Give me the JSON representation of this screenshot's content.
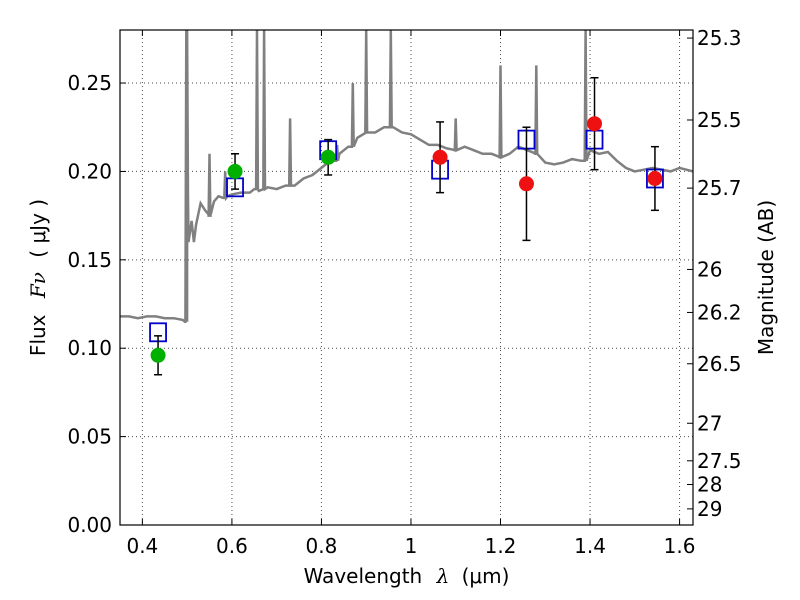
{
  "chart_data": {
    "type": "scatter",
    "xlabel": "Wavelength",
    "xlabel_symbol": "λ",
    "xlabel_unit": "(μm)",
    "ylabel": "Flux",
    "ylabel_symbol": "Fν",
    "ylabel_unit": "( μJy )",
    "y2label": "Magnitude (AB)",
    "xlim": [
      0.35,
      1.63
    ],
    "ylim": [
      0.0,
      0.28
    ],
    "grid": true,
    "x_ticks": [
      {
        "value": 0.4,
        "label": "0.4"
      },
      {
        "value": 0.6,
        "label": "0.6"
      },
      {
        "value": 0.8,
        "label": "0.8"
      },
      {
        "value": 1.0,
        "label": "1"
      },
      {
        "value": 1.2,
        "label": "1.2"
      },
      {
        "value": 1.4,
        "label": "1.4"
      },
      {
        "value": 1.6,
        "label": "1.6"
      }
    ],
    "y_ticks": [
      {
        "value": 0.0,
        "label": "0.00"
      },
      {
        "value": 0.05,
        "label": "0.05"
      },
      {
        "value": 0.1,
        "label": "0.10"
      },
      {
        "value": 0.15,
        "label": "0.15"
      },
      {
        "value": 0.2,
        "label": "0.20"
      },
      {
        "value": 0.25,
        "label": "0.25"
      }
    ],
    "mag_ticks": [
      {
        "value": 25.3,
        "label": "25.3"
      },
      {
        "value": 25.5,
        "label": "25.5"
      },
      {
        "value": 25.7,
        "label": "25.7"
      },
      {
        "value": 26.0,
        "label": "26"
      },
      {
        "value": 26.2,
        "label": "26.2"
      },
      {
        "value": 26.5,
        "label": "26.5"
      },
      {
        "value": 27.0,
        "label": "27"
      },
      {
        "value": 27.5,
        "label": "27.5"
      },
      {
        "value": 28.0,
        "label": "28"
      },
      {
        "value": 29.0,
        "label": "29"
      }
    ],
    "colors": {
      "spectrum": "#808080",
      "model": "#0000cc",
      "optical": "#00b000",
      "nir": "#ee1111",
      "errorbar": "#000000"
    },
    "spectrum": {
      "x": [
        0.35,
        0.37,
        0.39,
        0.41,
        0.43,
        0.45,
        0.47,
        0.49,
        0.495,
        0.5,
        0.503,
        0.51,
        0.515,
        0.52,
        0.53,
        0.54,
        0.55,
        0.56,
        0.57,
        0.58,
        0.59,
        0.6,
        0.62,
        0.64,
        0.65,
        0.66,
        0.67,
        0.68,
        0.7,
        0.72,
        0.74,
        0.76,
        0.78,
        0.8,
        0.82,
        0.84,
        0.86,
        0.88,
        0.9,
        0.92,
        0.94,
        0.96,
        0.98,
        1.0,
        1.02,
        1.04,
        1.06,
        1.08,
        1.1,
        1.12,
        1.14,
        1.16,
        1.18,
        1.2,
        1.22,
        1.24,
        1.26,
        1.28,
        1.3,
        1.32,
        1.34,
        1.36,
        1.38,
        1.4,
        1.42,
        1.44,
        1.46,
        1.48,
        1.5,
        1.52,
        1.54,
        1.56,
        1.58,
        1.6,
        1.63
      ],
      "y": [
        0.118,
        0.118,
        0.117,
        0.118,
        0.118,
        0.117,
        0.117,
        0.116,
        0.115,
        0.185,
        0.16,
        0.172,
        0.16,
        0.17,
        0.182,
        0.178,
        0.175,
        0.183,
        0.186,
        0.185,
        0.186,
        0.187,
        0.188,
        0.188,
        0.19,
        0.189,
        0.19,
        0.191,
        0.19,
        0.192,
        0.192,
        0.196,
        0.198,
        0.202,
        0.206,
        0.21,
        0.214,
        0.219,
        0.222,
        0.222,
        0.225,
        0.225,
        0.222,
        0.221,
        0.218,
        0.215,
        0.215,
        0.213,
        0.212,
        0.214,
        0.212,
        0.21,
        0.21,
        0.208,
        0.21,
        0.214,
        0.212,
        0.21,
        0.205,
        0.204,
        0.205,
        0.207,
        0.206,
        0.212,
        0.21,
        0.211,
        0.206,
        0.202,
        0.2,
        0.201,
        0.202,
        0.201,
        0.2,
        0.202,
        0.2
      ]
    },
    "spectrum_spikes": [
      {
        "x": 0.498,
        "y": 0.28
      },
      {
        "x": 0.5,
        "y": 0.28
      },
      {
        "x": 0.55,
        "y": 0.21
      },
      {
        "x": 0.585,
        "y": 0.2
      },
      {
        "x": 0.656,
        "y": 0.28
      },
      {
        "x": 0.672,
        "y": 0.28
      },
      {
        "x": 0.73,
        "y": 0.23
      },
      {
        "x": 0.835,
        "y": 0.215
      },
      {
        "x": 0.87,
        "y": 0.25
      },
      {
        "x": 0.9,
        "y": 0.28
      },
      {
        "x": 0.955,
        "y": 0.28
      },
      {
        "x": 1.1,
        "y": 0.23
      },
      {
        "x": 1.2,
        "y": 0.26
      },
      {
        "x": 1.28,
        "y": 0.26
      },
      {
        "x": 1.39,
        "y": 0.28
      }
    ],
    "model_points": {
      "x": [
        0.435,
        0.607,
        0.815,
        1.065,
        1.258,
        1.41,
        1.545
      ],
      "y": [
        0.109,
        0.191,
        0.212,
        0.201,
        0.218,
        0.218,
        0.196
      ]
    },
    "optical_points": {
      "x": [
        0.435,
        0.607,
        0.815
      ],
      "y": [
        0.096,
        0.2,
        0.208
      ],
      "err": [
        0.011,
        0.01,
        0.01
      ]
    },
    "nir_points": {
      "x": [
        1.065,
        1.258,
        1.41,
        1.545
      ],
      "y": [
        0.208,
        0.193,
        0.227,
        0.196
      ],
      "err": [
        0.02,
        0.032,
        0.026,
        0.018
      ]
    }
  }
}
